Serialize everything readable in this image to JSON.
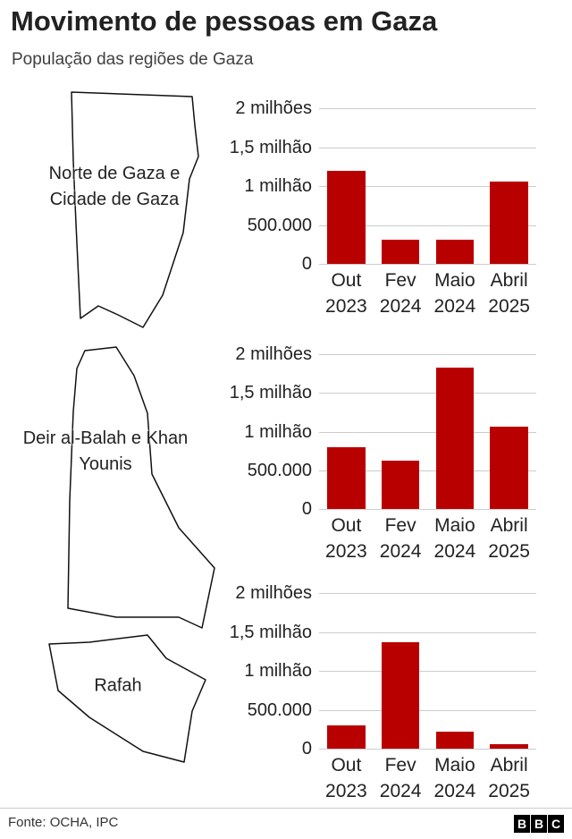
{
  "title": "Movimento de pessoas em Gaza",
  "subtitle": "População das regiões de Gaza",
  "source": "Fonte: OCHA, IPC",
  "logo": [
    "B",
    "B",
    "C"
  ],
  "chart_data": [
    {
      "type": "bar",
      "region": "Norte de Gaza e Cidade de Gaza",
      "categories": [
        "Out 2023",
        "Fev 2024",
        "Maio 2024",
        "Abril 2025"
      ],
      "values": [
        1200000,
        310000,
        310000,
        1060000
      ],
      "color": "#b80000",
      "ylim": [
        0,
        2000000
      ],
      "yticks": [
        0,
        {
          "value": 500000,
          "label": "500.000"
        },
        {
          "value": 1000000,
          "label": "1 milhão"
        },
        {
          "value": 1500000,
          "label": "1,5 milhão"
        },
        {
          "value": 2000000,
          "label": "2 milhões"
        }
      ],
      "grid": true
    },
    {
      "type": "bar",
      "region": "Deir al-Balah e Khan Younis",
      "categories": [
        "Out 2023",
        "Fev 2024",
        "Maio 2024",
        "Abril 2025"
      ],
      "values": [
        800000,
        620000,
        1830000,
        1060000
      ],
      "color": "#b80000",
      "ylim": [
        0,
        2000000
      ],
      "yticks": [
        0,
        {
          "value": 500000,
          "label": "500.000"
        },
        {
          "value": 1000000,
          "label": "1 milhão"
        },
        {
          "value": 1500000,
          "label": "1,5 milhão"
        },
        {
          "value": 2000000,
          "label": "2 milhões"
        }
      ],
      "grid": true
    },
    {
      "type": "bar",
      "region": "Rafah",
      "categories": [
        "Out 2023",
        "Fev 2024",
        "Maio 2024",
        "Abril 2025"
      ],
      "values": [
        300000,
        1370000,
        220000,
        60000
      ],
      "color": "#b80000",
      "ylim": [
        0,
        2000000
      ],
      "yticks": [
        0,
        {
          "value": 500000,
          "label": "500.000"
        },
        {
          "value": 1000000,
          "label": "1 milhão"
        },
        {
          "value": 1500000,
          "label": "1,5 milhão"
        },
        {
          "value": 2000000,
          "label": "2 milhões"
        }
      ],
      "grid": true
    }
  ]
}
